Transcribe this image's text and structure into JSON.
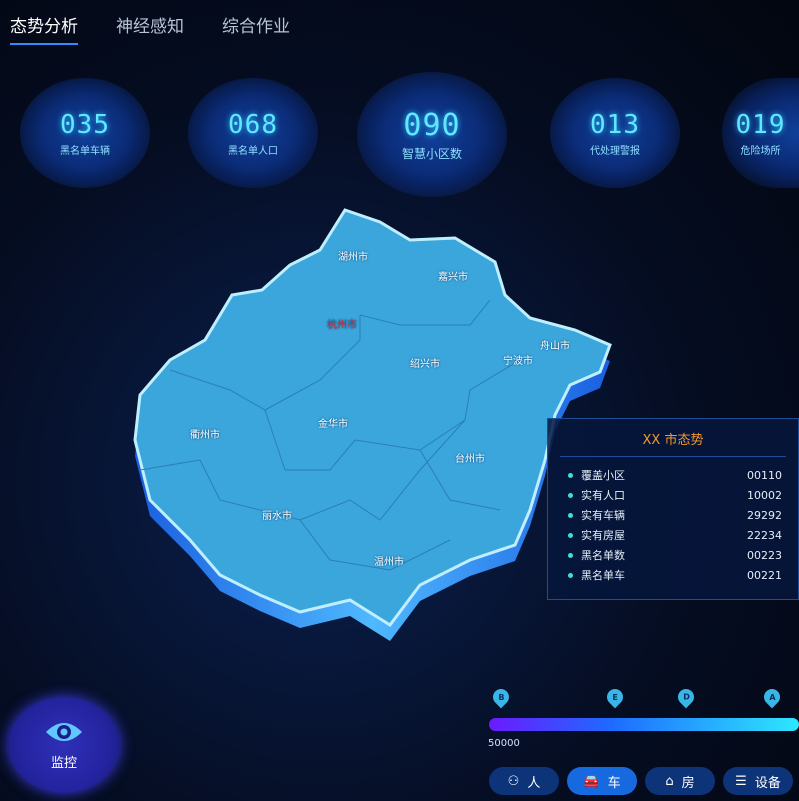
{
  "tabs": [
    {
      "label": "态势分析",
      "active": true
    },
    {
      "label": "神经感知"
    },
    {
      "label": "综合作业"
    }
  ],
  "stats": [
    {
      "value": "035",
      "label": "黑名单车辆"
    },
    {
      "value": "068",
      "label": "黑名单人口"
    },
    {
      "value": "090",
      "label": "智慧小区数"
    },
    {
      "value": "013",
      "label": "代处理警报"
    },
    {
      "value": "019",
      "label": "危险场所"
    }
  ],
  "map": {
    "cities": [
      "湖州市",
      "嘉兴市",
      "杭州市",
      "舟山市",
      "绍兴市",
      "宁波市",
      "衢州市",
      "金华市",
      "台州市",
      "丽水市",
      "温州市"
    ],
    "highlight": "杭州市",
    "highlight_color": "#e0262e",
    "fill_color": "#3aa6dc"
  },
  "panel": {
    "title": "XX 市态势",
    "rows": [
      {
        "label": "覆盖小区",
        "value": "00110"
      },
      {
        "label": "实有人口",
        "value": "10002"
      },
      {
        "label": "实有车辆",
        "value": "29292"
      },
      {
        "label": "实有房屋",
        "value": "22234"
      },
      {
        "label": "黑名单数",
        "value": "00223"
      },
      {
        "label": "黑名单车",
        "value": "00221"
      }
    ]
  },
  "monitor": {
    "label": "监控",
    "icon": "eye-icon"
  },
  "timeline": {
    "markers": [
      "B",
      "E",
      "D",
      "A"
    ],
    "scale_label": "50000"
  },
  "filters": [
    {
      "label": "人",
      "icon": "person-icon"
    },
    {
      "label": "车",
      "icon": "car-icon",
      "active": true
    },
    {
      "label": "房",
      "icon": "house-icon"
    },
    {
      "label": "设备",
      "icon": "device-icon"
    }
  ]
}
